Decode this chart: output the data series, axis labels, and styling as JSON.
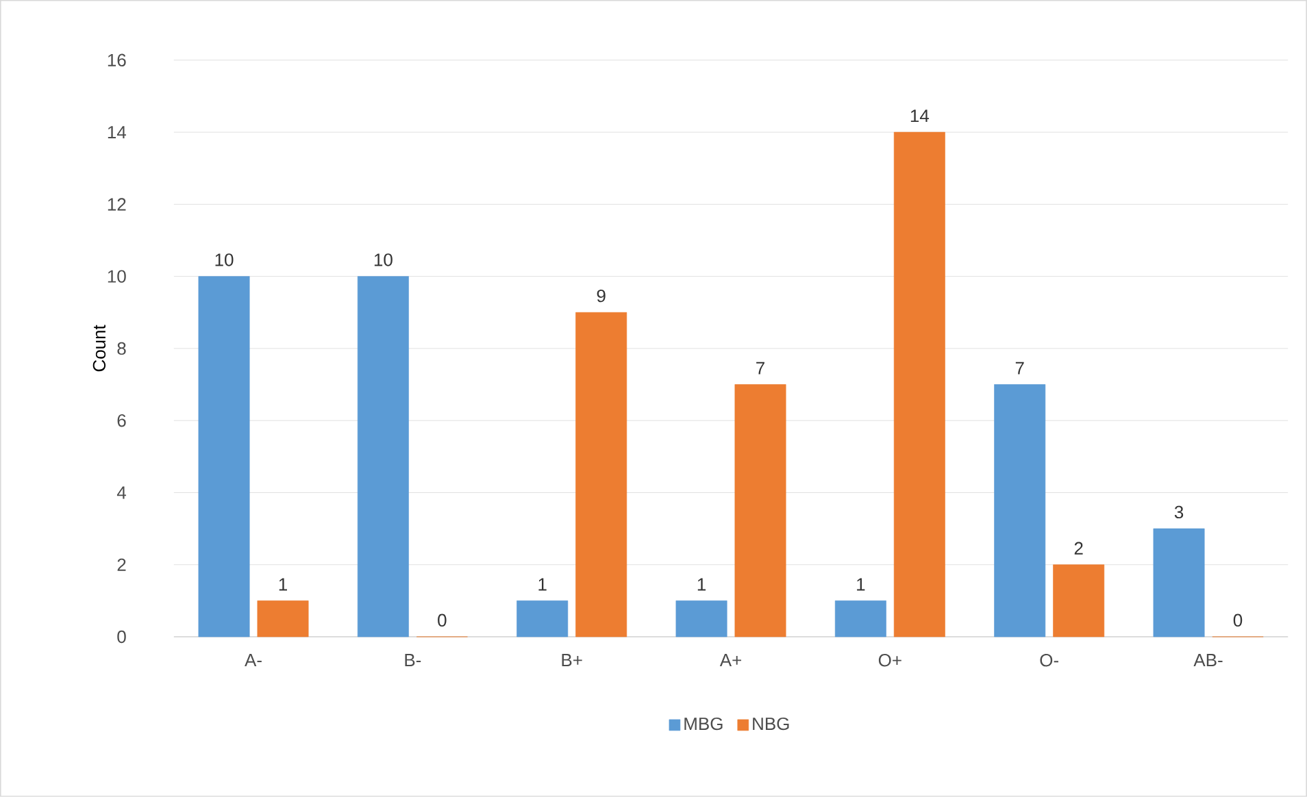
{
  "chart_data": {
    "type": "bar",
    "ylabel": "Count",
    "categories": [
      "A-",
      "B-",
      "B+",
      "A+",
      "O+",
      "O-",
      "AB-"
    ],
    "series": [
      {
        "name": "MBG",
        "color": "#5b9bd5",
        "values": [
          10,
          10,
          1,
          1,
          1,
          7,
          3
        ]
      },
      {
        "name": "NBG",
        "color": "#ed7d31",
        "values": [
          1,
          0,
          9,
          7,
          14,
          2,
          0
        ]
      }
    ],
    "ylim": [
      0,
      16
    ],
    "yticks": [
      0,
      2,
      4,
      6,
      8,
      10,
      12,
      14,
      16
    ],
    "grid": "y",
    "legend": "bottom",
    "data_labels": true
  }
}
